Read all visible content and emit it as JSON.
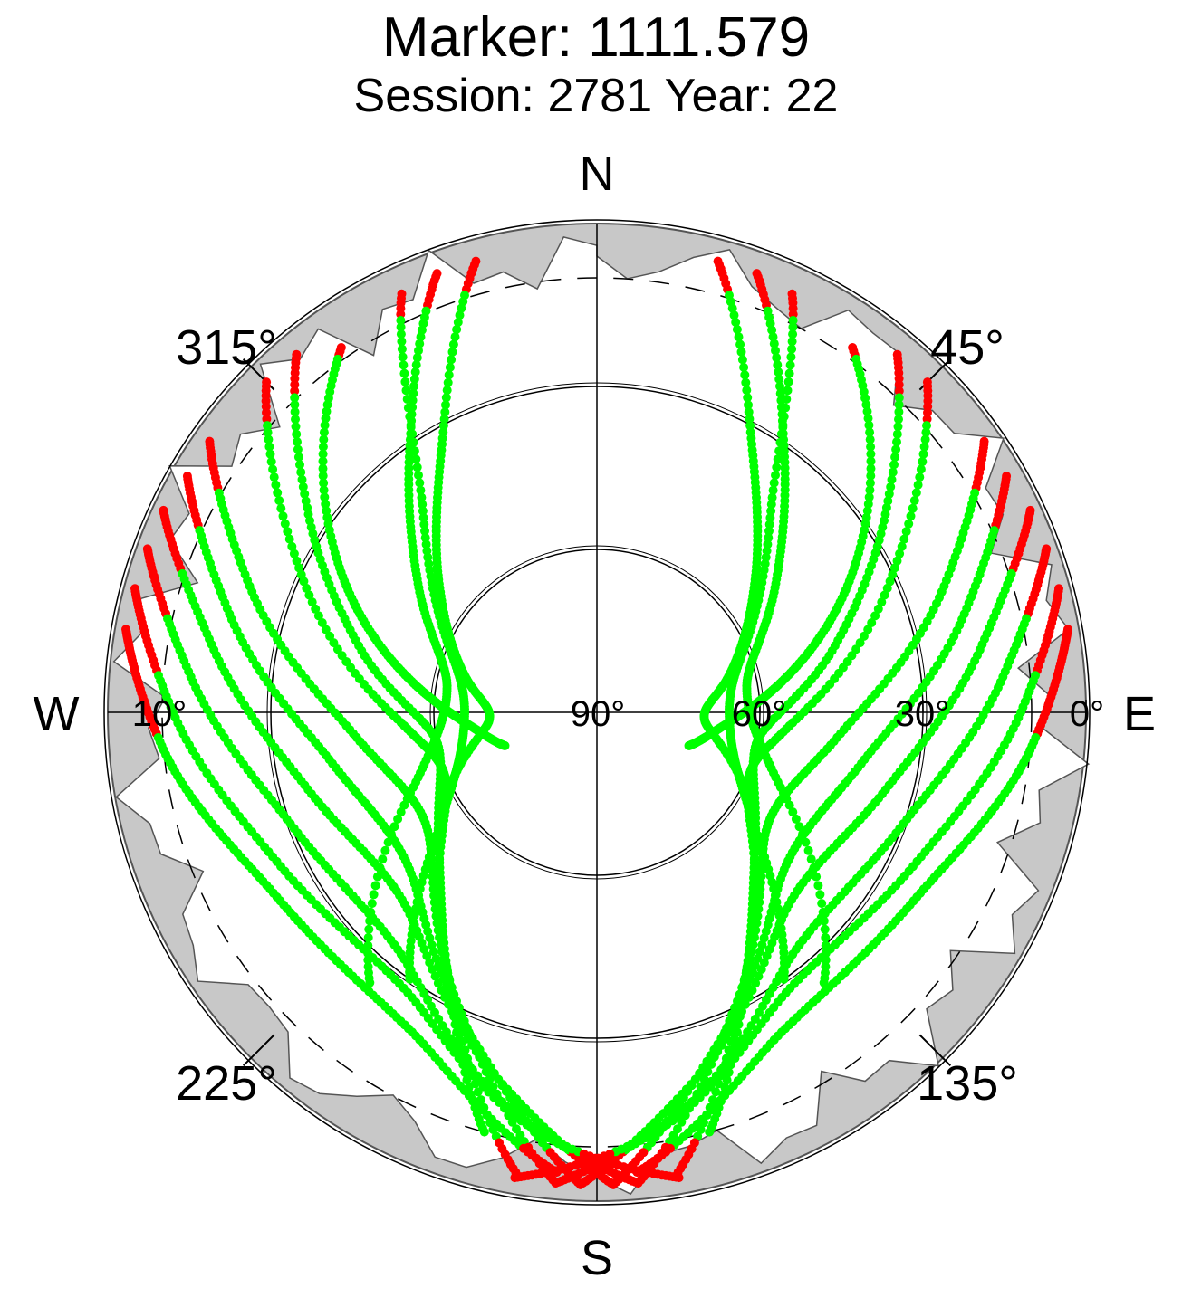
{
  "chart_data": {
    "type": "scatter",
    "projection": "polar-skyplot",
    "title": "Marker: 1111.579",
    "subtitle": "Session: 2781 Year: 22",
    "compass": {
      "north": "N",
      "south": "S",
      "west": "W",
      "east": "E"
    },
    "azimuth_labels": [
      {
        "azimuth": 45,
        "label": "45°"
      },
      {
        "azimuth": 135,
        "label": "135°"
      },
      {
        "azimuth": 225,
        "label": "225°"
      },
      {
        "azimuth": 315,
        "label": "315°"
      }
    ],
    "elevation_labels": [
      {
        "elevation": 0,
        "label": "0°"
      },
      {
        "elevation": 30,
        "label": "30°"
      },
      {
        "elevation": 60,
        "label": "60°"
      },
      {
        "elevation": 90,
        "label": "90°"
      },
      {
        "elevation": 10,
        "label": "10°"
      }
    ],
    "elevation_circles": [
      30,
      60
    ],
    "cutoff_elevation": 10,
    "horizon_mask": true,
    "series": [
      {
        "color": "#00ff00",
        "marker": "dot",
        "role": "tracked"
      },
      {
        "color": "#ff0000",
        "marker": "dot",
        "role": "low-elevation/flagged"
      }
    ],
    "tracks": [
      {
        "az": [
          35,
          60,
          80,
          95,
          110
        ],
        "el": [
          8,
          35,
          55,
          66,
          72
        ]
      },
      {
        "az": [
          25,
          40,
          70,
          100,
          125,
          145
        ],
        "el": [
          5,
          40,
          62,
          65,
          55,
          30
        ]
      },
      {
        "az": [
          40,
          55,
          75,
          100,
          130,
          150,
          165
        ],
        "el": [
          4,
          25,
          45,
          60,
          52,
          35,
          10
        ]
      },
      {
        "az": [
          45,
          65,
          95,
          120,
          150,
          170
        ],
        "el": [
          4,
          30,
          55,
          58,
          35,
          4
        ]
      },
      {
        "az": [
          55,
          70,
          95,
          125,
          155,
          175
        ],
        "el": [
          3,
          22,
          45,
          52,
          30,
          3
        ]
      },
      {
        "az": [
          60,
          75,
          100,
          130,
          160,
          178
        ],
        "el": [
          3,
          20,
          40,
          45,
          25,
          3
        ]
      },
      {
        "az": [
          65,
          80,
          105,
          135,
          165,
          182
        ],
        "el": [
          2,
          18,
          35,
          40,
          20,
          3
        ]
      },
      {
        "az": [
          70,
          85,
          110,
          140,
          168,
          185
        ],
        "el": [
          2,
          15,
          30,
          33,
          15,
          3
        ]
      },
      {
        "az": [
          75,
          90,
          115,
          145,
          172,
          190
        ],
        "el": [
          2,
          12,
          25,
          28,
          12,
          3
        ]
      },
      {
        "az": [
          80,
          95,
          120,
          150,
          175
        ],
        "el": [
          2,
          10,
          22,
          22,
          5
        ]
      },
      {
        "az": [
          20,
          35,
          55,
          80,
          110,
          140
        ],
        "el": [
          4,
          30,
          50,
          62,
          55,
          25
        ]
      },
      {
        "az": [
          15,
          30,
          50,
          75,
          95,
          120
        ],
        "el": [
          4,
          33,
          52,
          65,
          70,
          58
        ]
      },
      {
        "az": [
          325,
          300,
          280,
          265,
          250
        ],
        "el": [
          8,
          35,
          55,
          66,
          72
        ]
      },
      {
        "az": [
          335,
          320,
          290,
          260,
          235,
          215
        ],
        "el": [
          5,
          40,
          62,
          65,
          55,
          30
        ]
      },
      {
        "az": [
          320,
          305,
          285,
          260,
          230,
          210,
          195
        ],
        "el": [
          4,
          25,
          45,
          60,
          52,
          35,
          10
        ]
      },
      {
        "az": [
          315,
          295,
          265,
          240,
          210,
          190
        ],
        "el": [
          4,
          30,
          55,
          58,
          35,
          4
        ]
      },
      {
        "az": [
          305,
          290,
          265,
          235,
          205,
          185
        ],
        "el": [
          3,
          22,
          45,
          52,
          30,
          3
        ]
      },
      {
        "az": [
          300,
          285,
          260,
          230,
          200,
          182
        ],
        "el": [
          3,
          20,
          40,
          45,
          25,
          3
        ]
      },
      {
        "az": [
          295,
          280,
          255,
          225,
          195,
          178
        ],
        "el": [
          2,
          18,
          35,
          40,
          20,
          3
        ]
      },
      {
        "az": [
          290,
          275,
          250,
          220,
          192,
          175
        ],
        "el": [
          2,
          15,
          30,
          33,
          15,
          3
        ]
      },
      {
        "az": [
          285,
          270,
          245,
          215,
          188,
          170
        ],
        "el": [
          2,
          12,
          25,
          28,
          12,
          3
        ]
      },
      {
        "az": [
          280,
          265,
          240,
          210,
          185
        ],
        "el": [
          2,
          10,
          22,
          22,
          5
        ]
      },
      {
        "az": [
          340,
          325,
          305,
          280,
          250,
          220
        ],
        "el": [
          4,
          30,
          50,
          62,
          55,
          25
        ]
      },
      {
        "az": [
          345,
          330,
          310,
          285,
          265,
          240
        ],
        "el": [
          4,
          33,
          52,
          65,
          70,
          58
        ]
      }
    ]
  }
}
